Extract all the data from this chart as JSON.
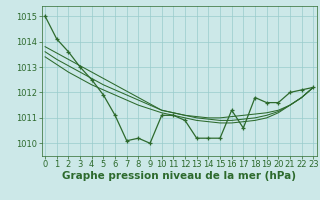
{
  "xlabel": "Graphe pression niveau de la mer (hPa)",
  "hours": [
    0,
    1,
    2,
    3,
    4,
    5,
    6,
    7,
    8,
    9,
    10,
    11,
    12,
    13,
    14,
    15,
    16,
    17,
    18,
    19,
    20,
    21,
    22,
    23
  ],
  "main_line": [
    1015.0,
    1014.1,
    1013.6,
    1013.0,
    1012.5,
    1011.9,
    1011.1,
    1010.1,
    1010.2,
    1010.0,
    1011.1,
    1011.1,
    1010.9,
    1010.2,
    1010.2,
    1010.2,
    1011.3,
    1010.6,
    1011.8,
    1011.6,
    1011.6,
    1012.0,
    1012.1,
    1012.2
  ],
  "trend1": [
    1013.8,
    1013.55,
    1013.3,
    1013.05,
    1012.8,
    1012.55,
    1012.3,
    1012.05,
    1011.8,
    1011.55,
    1011.3,
    1011.2,
    1011.1,
    1011.05,
    1011.0,
    1011.0,
    1011.05,
    1011.1,
    1011.15,
    1011.2,
    1011.3,
    1011.5,
    1011.8,
    1012.2
  ],
  "trend2": [
    1013.6,
    1013.3,
    1013.05,
    1012.8,
    1012.55,
    1012.3,
    1012.1,
    1011.9,
    1011.7,
    1011.5,
    1011.3,
    1011.2,
    1011.1,
    1011.0,
    1010.95,
    1010.9,
    1010.9,
    1010.95,
    1011.0,
    1011.1,
    1011.25,
    1011.5,
    1011.8,
    1012.2
  ],
  "trend3": [
    1013.4,
    1013.1,
    1012.8,
    1012.55,
    1012.3,
    1012.1,
    1011.9,
    1011.7,
    1011.5,
    1011.35,
    1011.2,
    1011.1,
    1011.0,
    1010.9,
    1010.85,
    1010.8,
    1010.8,
    1010.85,
    1010.9,
    1011.0,
    1011.2,
    1011.5,
    1011.8,
    1012.2
  ],
  "ylim": [
    1009.5,
    1015.4
  ],
  "yticks": [
    1010,
    1011,
    1012,
    1013,
    1014,
    1015
  ],
  "xlim": [
    -0.3,
    23.3
  ],
  "bg_color": "#cce8e8",
  "grid_color": "#99cccc",
  "line_color": "#2d6a2d",
  "title_color": "#2d6a2d",
  "title_fontsize": 7.5,
  "tick_fontsize": 6.0
}
